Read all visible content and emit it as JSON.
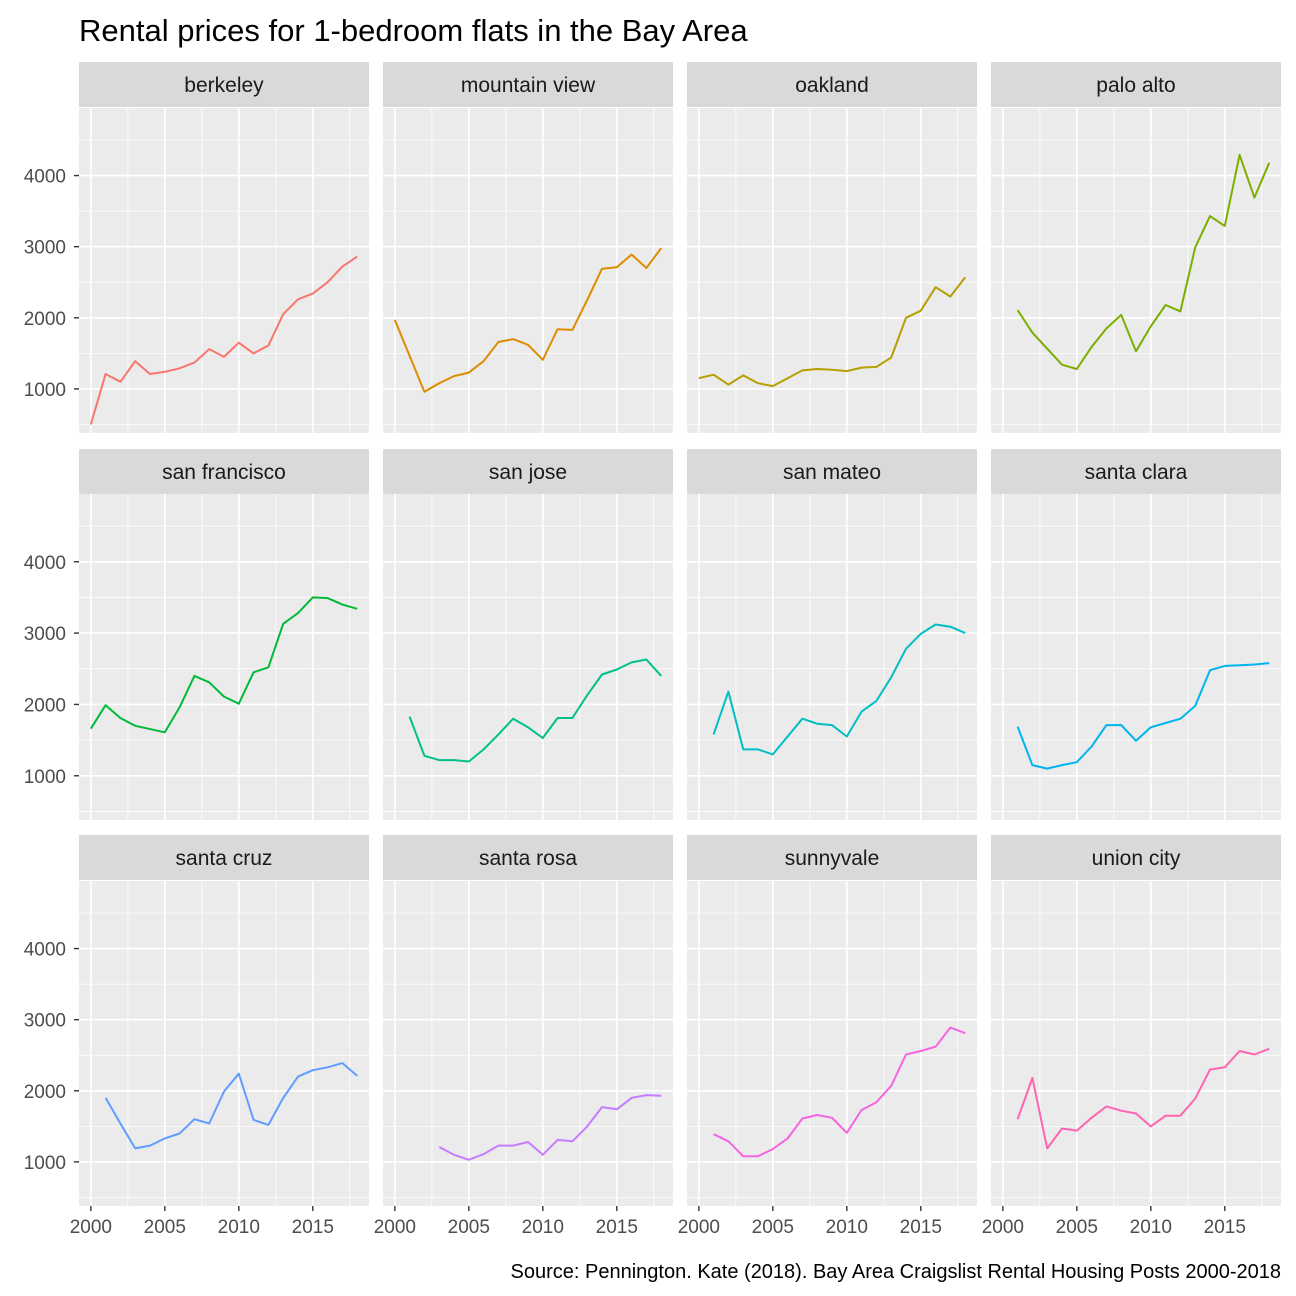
{
  "chart_data": {
    "type": "line",
    "title": "Rental prices for 1-bedroom flats in the Bay Area",
    "caption": "Source: Pennington. Kate (2018). Bay Area Craigslist Rental Housing Posts 2000-2018",
    "xlabel": "",
    "ylabel": "",
    "xlim": [
      1999.2,
      2018.8
    ],
    "ylim": [
      380,
      4950
    ],
    "x_ticks": [
      2000,
      2005,
      2010,
      2015
    ],
    "y_ticks": [
      1000,
      2000,
      3000,
      4000
    ],
    "x_tick_labels": [
      "2000",
      "2005",
      "2010",
      "2015"
    ],
    "y_tick_labels": [
      "1000",
      "2000",
      "3000",
      "4000"
    ],
    "grid": true,
    "legend": "none",
    "facets": [
      {
        "name": "berkeley",
        "color": "#F8766D",
        "x": [
          2000,
          2001,
          2002,
          2003,
          2004,
          2005,
          2006,
          2007,
          2008,
          2009,
          2010,
          2011,
          2012,
          2013,
          2014,
          2015,
          2016,
          2017,
          2018
        ],
        "y": [
          500,
          1210,
          1100,
          1390,
          1210,
          1240,
          1290,
          1370,
          1560,
          1450,
          1650,
          1500,
          1610,
          2050,
          2260,
          2340,
          2500,
          2720,
          2860
        ]
      },
      {
        "name": "mountain view",
        "color": "#DE8C00",
        "x": [
          2000,
          2002,
          2003,
          2004,
          2005,
          2006,
          2007,
          2008,
          2009,
          2010,
          2011,
          2012,
          2013,
          2014,
          2015,
          2016,
          2017,
          2018
        ],
        "y": [
          1970,
          960,
          1080,
          1180,
          1230,
          1390,
          1660,
          1700,
          1620,
          1410,
          1840,
          1830,
          2250,
          2690,
          2710,
          2890,
          2700,
          2980
        ]
      },
      {
        "name": "oakland",
        "color": "#B79F00",
        "x": [
          2000,
          2001,
          2002,
          2003,
          2004,
          2005,
          2006,
          2007,
          2008,
          2009,
          2010,
          2011,
          2012,
          2013,
          2014,
          2015,
          2016,
          2017,
          2018
        ],
        "y": [
          1150,
          1200,
          1060,
          1190,
          1080,
          1040,
          1150,
          1260,
          1280,
          1270,
          1250,
          1300,
          1310,
          1440,
          2000,
          2100,
          2430,
          2300,
          2570
        ]
      },
      {
        "name": "palo alto",
        "color": "#7CAE00",
        "x": [
          2001,
          2002,
          2004,
          2005,
          2006,
          2007,
          2008,
          2009,
          2010,
          2011,
          2012,
          2013,
          2014,
          2015,
          2016,
          2017,
          2018
        ],
        "y": [
          2110,
          1790,
          1340,
          1280,
          1590,
          1850,
          2040,
          1530,
          1880,
          2180,
          2090,
          2990,
          3430,
          3290,
          4290,
          3690,
          4180
        ]
      },
      {
        "name": "san francisco",
        "color": "#00BA38",
        "x": [
          2000,
          2001,
          2002,
          2003,
          2005,
          2006,
          2007,
          2008,
          2009,
          2010,
          2011,
          2012,
          2013,
          2014,
          2015,
          2016,
          2017,
          2018
        ],
        "y": [
          1660,
          1990,
          1810,
          1700,
          1610,
          1960,
          2400,
          2310,
          2110,
          2010,
          2450,
          2520,
          3130,
          3280,
          3500,
          3490,
          3400,
          3340
        ]
      },
      {
        "name": "san jose",
        "color": "#00C08B",
        "x": [
          2001,
          2002,
          2003,
          2004,
          2005,
          2006,
          2007,
          2008,
          2009,
          2010,
          2011,
          2012,
          2013,
          2014,
          2015,
          2016,
          2017,
          2018
        ],
        "y": [
          1830,
          1280,
          1220,
          1220,
          1200,
          1370,
          1580,
          1800,
          1680,
          1530,
          1810,
          1810,
          2130,
          2420,
          2490,
          2590,
          2630,
          2400
        ]
      },
      {
        "name": "san mateo",
        "color": "#00BFC4",
        "x": [
          2001,
          2002,
          2003,
          2004,
          2005,
          2006,
          2007,
          2008,
          2009,
          2010,
          2011,
          2012,
          2013,
          2014,
          2015,
          2016,
          2017,
          2018
        ],
        "y": [
          1580,
          2180,
          1370,
          1370,
          1300,
          1550,
          1800,
          1730,
          1710,
          1550,
          1900,
          2050,
          2380,
          2780,
          2990,
          3120,
          3090,
          3000
        ]
      },
      {
        "name": "santa clara",
        "color": "#00B4F0",
        "x": [
          2001,
          2002,
          2003,
          2004,
          2005,
          2006,
          2007,
          2008,
          2009,
          2010,
          2011,
          2012,
          2013,
          2014,
          2015,
          2016,
          2017,
          2018
        ],
        "y": [
          1690,
          1150,
          1100,
          1150,
          1190,
          1410,
          1710,
          1710,
          1490,
          1680,
          1740,
          1800,
          1980,
          2480,
          2540,
          2550,
          2560,
          2580
        ]
      },
      {
        "name": "santa cruz",
        "color": "#619CFF",
        "x": [
          2001,
          2002,
          2003,
          2004,
          2005,
          2006,
          2007,
          2008,
          2009,
          2010,
          2011,
          2012,
          2013,
          2014,
          2015,
          2016,
          2017,
          2018
        ],
        "y": [
          1900,
          1540,
          1190,
          1230,
          1330,
          1400,
          1600,
          1540,
          1990,
          2240,
          1590,
          1520,
          1900,
          2200,
          2290,
          2330,
          2390,
          2210
        ]
      },
      {
        "name": "santa rosa",
        "color": "#C77CFF",
        "x": [
          2003,
          2004,
          2005,
          2006,
          2007,
          2008,
          2009,
          2010,
          2011,
          2012,
          2013,
          2014,
          2015,
          2016,
          2017,
          2018
        ],
        "y": [
          1210,
          1100,
          1030,
          1110,
          1230,
          1230,
          1280,
          1100,
          1310,
          1290,
          1500,
          1770,
          1740,
          1900,
          1940,
          1930
        ]
      },
      {
        "name": "sunnyvale",
        "color": "#F564E3",
        "x": [
          2001,
          2002,
          2003,
          2004,
          2005,
          2006,
          2007,
          2008,
          2009,
          2010,
          2011,
          2012,
          2013,
          2014,
          2015,
          2016,
          2017,
          2018
        ],
        "y": [
          1390,
          1290,
          1080,
          1080,
          1180,
          1330,
          1610,
          1660,
          1620,
          1410,
          1730,
          1840,
          2070,
          2510,
          2560,
          2620,
          2890,
          2810
        ]
      },
      {
        "name": "union city",
        "color": "#FF64B0",
        "x": [
          2001,
          2002,
          2003,
          2004,
          2005,
          2006,
          2007,
          2008,
          2009,
          2010,
          2011,
          2012,
          2013,
          2014,
          2015,
          2016,
          2017,
          2018
        ],
        "y": [
          1600,
          2180,
          1190,
          1470,
          1440,
          1620,
          1780,
          1720,
          1680,
          1500,
          1650,
          1650,
          1890,
          2300,
          2330,
          2560,
          2510,
          2590
        ]
      }
    ]
  }
}
